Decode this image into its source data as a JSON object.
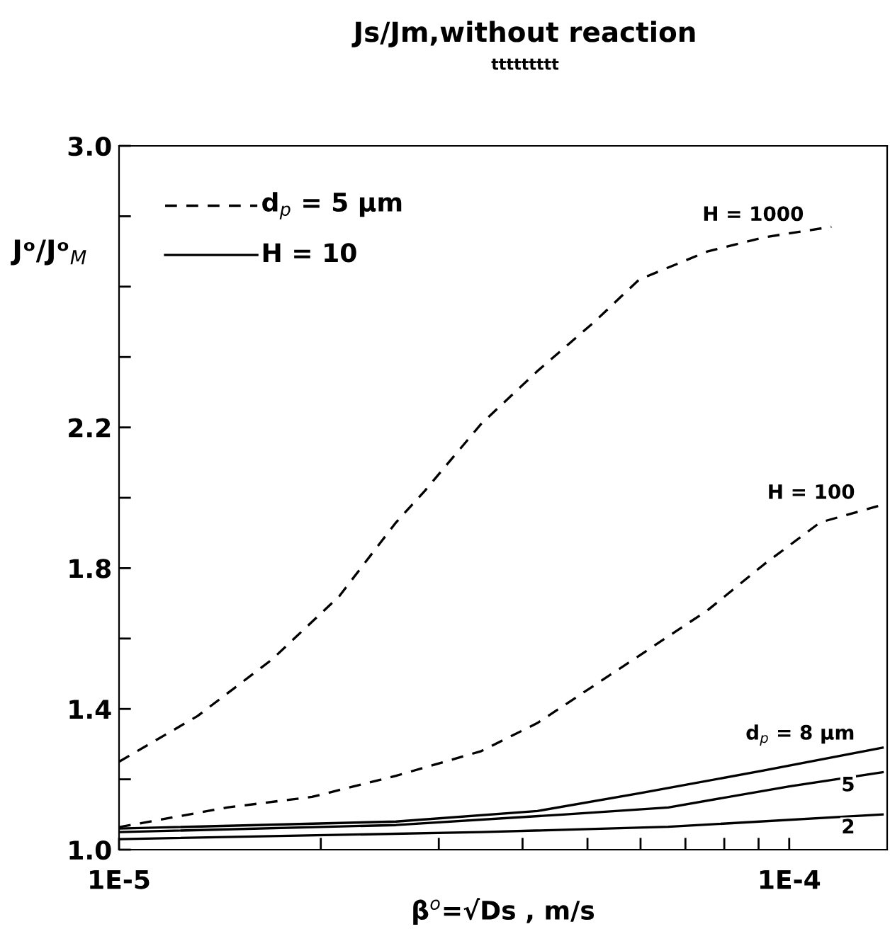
{
  "chart_data": {
    "type": "line",
    "title": "Js/Jm,without reaction",
    "subtitle": "ttttttttt",
    "xlabel": "β$^{o}$=√Ds , m/s",
    "ylabel": "Jᵒ/Jᵒ$_{M}$",
    "log": "x",
    "xlim": [
      1e-05,
      0.00014
    ],
    "xticks": [
      {
        "value": 1e-05,
        "label": "1E-5"
      },
      {
        "value": 2e-05,
        "label": null
      },
      {
        "value": 3e-05,
        "label": null
      },
      {
        "value": 4e-05,
        "label": null
      },
      {
        "value": 5e-05,
        "label": null
      },
      {
        "value": 6e-05,
        "label": null
      },
      {
        "value": 7e-05,
        "label": null
      },
      {
        "value": 8e-05,
        "label": null
      },
      {
        "value": 9e-05,
        "label": null
      },
      {
        "value": 0.0001,
        "label": "1E-4"
      }
    ],
    "ylim": [
      1.0,
      3.0
    ],
    "yticks": [
      {
        "value": 1.0,
        "label": "1.0"
      },
      {
        "value": 1.2,
        "label": null
      },
      1.4,
      {
        "value": 1.6,
        "label": null
      },
      1.8,
      {
        "value": 2.0,
        "label": null
      },
      2.2,
      {
        "value": 2.4,
        "label": null
      },
      {
        "value": 2.6,
        "label": null
      },
      {
        "value": 2.8,
        "label": null
      },
      {
        "value": 3.0,
        "label": "3.0"
      }
    ],
    "grid": false,
    "marker": "none",
    "annotations": [
      "d$_{p}$ = 5 µm",
      "H = 10"
    ],
    "series": [
      {
        "name": "H = 1000",
        "color": "#000000",
        "line_style": "dashed",
        "x": [
          1e-05,
          1.31e-05,
          1.69e-05,
          2.13e-05,
          2.59e-05,
          2.86e-05,
          3.47e-05,
          4.21e-05,
          5.12e-05,
          5.97e-05,
          7.55e-05,
          9.16e-05,
          0.0001156
        ],
        "values": [
          1.25,
          1.38,
          1.54,
          1.72,
          1.93,
          2.02,
          2.21,
          2.36,
          2.5,
          2.62,
          2.7,
          2.74,
          2.77
        ]
      },
      {
        "name": "H = 100",
        "color": "#000000",
        "line_style": "dashed",
        "x": [
          1e-05,
          1.45e-05,
          1.94e-05,
          2.59e-05,
          3.47e-05,
          4.21e-05,
          5.64e-05,
          7.55e-05,
          9.16e-05,
          0.0001112,
          0.0001378
        ],
        "values": [
          1.064,
          1.12,
          1.15,
          1.21,
          1.28,
          1.36,
          1.52,
          1.68,
          1.81,
          1.93,
          1.98
        ]
      },
      {
        "name": "d$_{p}$ = 8 µm",
        "color": "#000000",
        "line_style": "solid",
        "x": [
          1e-05,
          2.59e-05,
          4.21e-05,
          5.97e-05,
          9.16e-05,
          0.0001378
        ],
        "values": [
          1.06,
          1.08,
          1.11,
          1.16,
          1.225,
          1.29
        ]
      },
      {
        "name": "5",
        "color": "#000000",
        "line_style": "solid",
        "x": [
          1e-05,
          2.59e-05,
          4.6e-05,
          6.6e-05,
          0.0001,
          0.0001378
        ],
        "values": [
          1.05,
          1.07,
          1.1,
          1.12,
          1.18,
          1.22
        ]
      },
      {
        "name": "2",
        "color": "#000000",
        "line_style": "solid",
        "x": [
          1e-05,
          3.47e-05,
          6.6e-05,
          0.0001378
        ],
        "values": [
          1.03,
          1.05,
          1.065,
          1.1
        ]
      }
    ]
  }
}
